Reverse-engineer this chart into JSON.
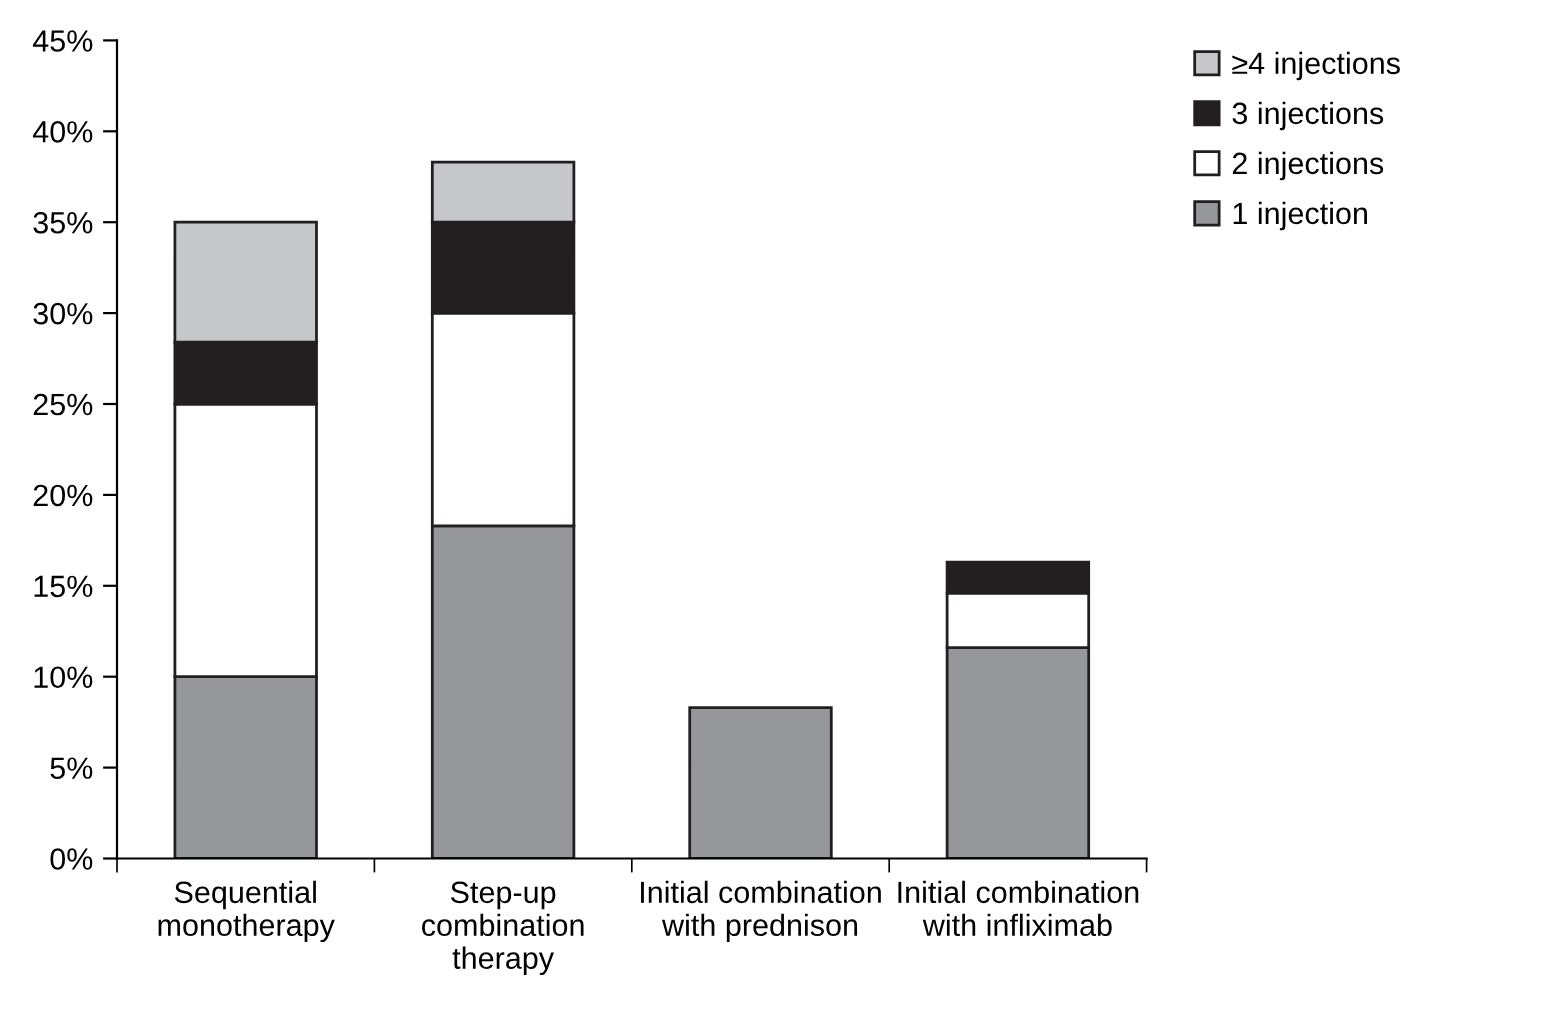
{
  "chart_data": {
    "type": "bar",
    "stacked": true,
    "categories": [
      "Sequential\nmonotherapy",
      "Step-up\ncombination\ntherapy",
      "Initial combination\nwith prednison",
      "Initial combination\nwith infliximab"
    ],
    "series": [
      {
        "name": "1 injection",
        "color": "#96979b",
        "values": [
          10,
          18.3,
          8.3,
          11.6
        ]
      },
      {
        "name": "2 injections",
        "color": "#ffffff",
        "values": [
          15,
          11.7,
          null,
          3
        ]
      },
      {
        "name": "3 injections",
        "color": "#231f20",
        "values": [
          3.4,
          5,
          null,
          1.7
        ]
      },
      {
        "name": "≥4 injections",
        "color": "#c6c7c9",
        "values": [
          6.6,
          3.3,
          null,
          null
        ]
      }
    ],
    "ylim": [
      0,
      45
    ],
    "yticks": [
      {
        "value": 0,
        "label": "0%"
      },
      {
        "value": 5,
        "label": "5%"
      },
      {
        "value": 10,
        "label": "10%"
      },
      {
        "value": 15,
        "label": "15%"
      },
      {
        "value": 20,
        "label": "20%"
      },
      {
        "value": 25,
        "label": "25%"
      },
      {
        "value": 30,
        "label": "30%"
      },
      {
        "value": 35,
        "label": "35%"
      },
      {
        "value": 40,
        "label": "40%"
      },
      {
        "value": 45,
        "label": "45%"
      }
    ],
    "grid": false,
    "legend": "top right"
  }
}
